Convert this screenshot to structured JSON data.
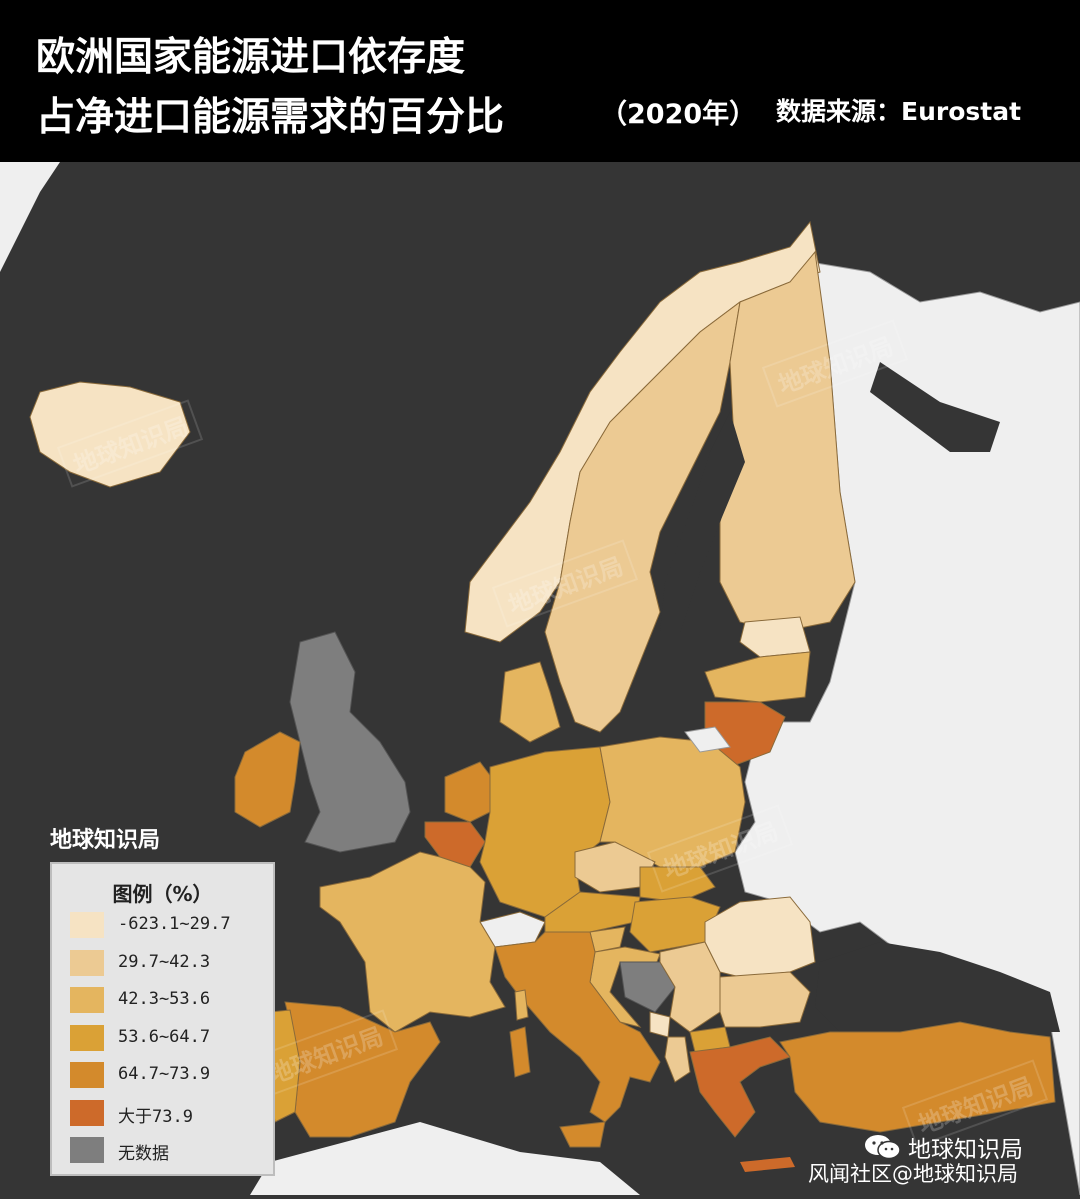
{
  "header": {
    "title": "欧洲国家能源进口依存度",
    "subtitle": "占净进口能源需求的百分比",
    "year": "（2020年）",
    "source": "数据来源：Eurostat"
  },
  "brand": "地球知识局",
  "watermark": "地球知识局",
  "legend": {
    "title": "图例（%）",
    "items": [
      {
        "label": "-623.1~29.7",
        "color": "#f6e3c3"
      },
      {
        "label": "29.7~42.3",
        "color": "#ecca93"
      },
      {
        "label": "42.3~53.6",
        "color": "#e4b55f"
      },
      {
        "label": "53.6~64.7",
        "color": "#daa136"
      },
      {
        "label": "64.7~73.9",
        "color": "#d38a2c"
      },
      {
        "label": "大于73.9",
        "color": "#cd6a2a"
      },
      {
        "label": "无数据",
        "color": "#7e7e7e"
      }
    ]
  },
  "footer": {
    "brand": "地球知识局",
    "site": "风闻社区@地球知识局"
  },
  "colors": {
    "sea": "#353535",
    "non_member_land": "#efefef",
    "border": "#8a6a3a"
  }
}
